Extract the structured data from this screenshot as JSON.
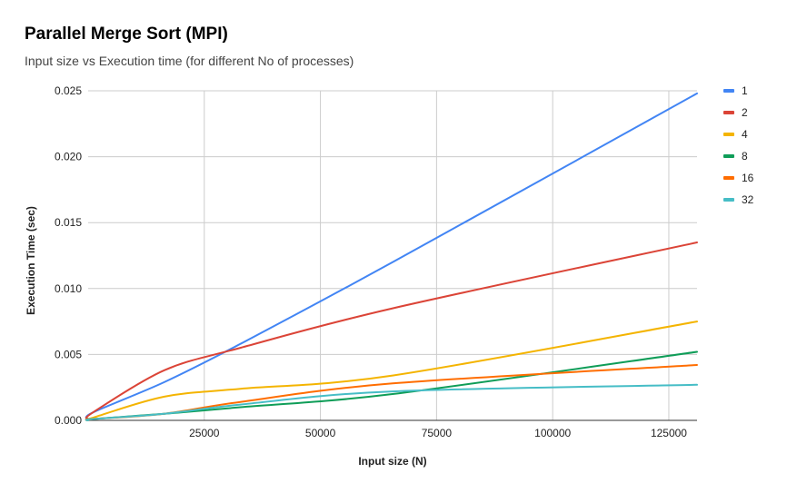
{
  "chart_data": {
    "type": "line",
    "title": "Parallel Merge Sort (MPI)",
    "subtitle": "Input size vs Execution time (for different No of processes)",
    "xlabel": "Input size (N)",
    "ylabel": "Execution Time (sec)",
    "xlim": [
      0,
      131072
    ],
    "ylim": [
      0,
      0.025
    ],
    "x_ticks": [
      25000,
      50000,
      75000,
      100000,
      125000
    ],
    "y_ticks": [
      0,
      0.005,
      0.01,
      0.015,
      0.02,
      0.025
    ],
    "x_tick_labels": [
      "25000",
      "50000",
      "75000",
      "100000",
      "125000"
    ],
    "y_tick_labels": [
      "0.000",
      "0.005",
      "0.010",
      "0.015",
      "0.020",
      "0.025"
    ],
    "grid": true,
    "legend_position": "right",
    "x": [
      0,
      1024,
      16384,
      32768,
      65536,
      131072
    ],
    "series": [
      {
        "name": "1",
        "color": "#4285f4",
        "values": [
          0.0001,
          0.0006,
          0.0029,
          0.0058,
          0.012,
          0.0248
        ]
      },
      {
        "name": "2",
        "color": "#db4437",
        "values": [
          0.0001,
          0.0006,
          0.0038,
          0.0055,
          0.0085,
          0.0135
        ]
      },
      {
        "name": "4",
        "color": "#f4b400",
        "values": [
          0.0001,
          0.0002,
          0.0018,
          0.0024,
          0.0034,
          0.0075
        ]
      },
      {
        "name": "8",
        "color": "#0f9d58",
        "values": [
          0.0,
          0.0001,
          0.0005,
          0.001,
          0.002,
          0.0052
        ]
      },
      {
        "name": "16",
        "color": "#ff6d00",
        "values": [
          0.0,
          0.0001,
          0.0005,
          0.0014,
          0.0028,
          0.0042
        ]
      },
      {
        "name": "32",
        "color": "#46bdc6",
        "values": [
          0.0,
          0.0001,
          0.0005,
          0.0012,
          0.0022,
          0.0027
        ]
      }
    ]
  }
}
